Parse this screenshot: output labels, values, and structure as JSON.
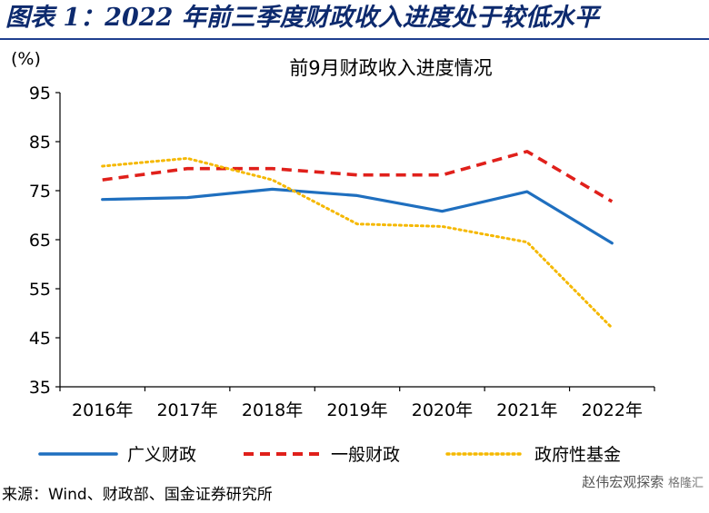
{
  "figure_title": "图表 1：2022 年前三季度财政收入进度处于较低水平",
  "source_note": "来源：Wind、财政部、国金证券研究所",
  "watermark": {
    "channel": "赵伟宏观探索",
    "brand": "格隆汇"
  },
  "colors": {
    "title": "#0d2a6e",
    "rule": "#1f3f8f",
    "series": [
      "#1f6fbf",
      "#e0201b",
      "#f5b800"
    ]
  },
  "chart_data": {
    "type": "line",
    "title": "前9月财政收入进度情况",
    "ylabel": "(%)",
    "xlabel": "",
    "categories": [
      "2016年",
      "2017年",
      "2018年",
      "2019年",
      "2020年",
      "2021年",
      "2022年"
    ],
    "ylim": [
      35,
      95
    ],
    "yticks": [
      35,
      45,
      55,
      65,
      75,
      85,
      95
    ],
    "grid": false,
    "legend": "bottom",
    "series": [
      {
        "name": "广义财政",
        "values": [
          73.2,
          73.6,
          75.3,
          74.0,
          70.8,
          74.8,
          64.3
        ],
        "style": "solid"
      },
      {
        "name": "一般财政",
        "values": [
          77.2,
          79.5,
          79.5,
          78.2,
          78.2,
          83.0,
          72.8
        ],
        "style": "dashed"
      },
      {
        "name": "政府性基金",
        "values": [
          80.0,
          81.6,
          77.2,
          68.2,
          67.7,
          64.5,
          47.0
        ],
        "style": "dotted"
      }
    ]
  }
}
